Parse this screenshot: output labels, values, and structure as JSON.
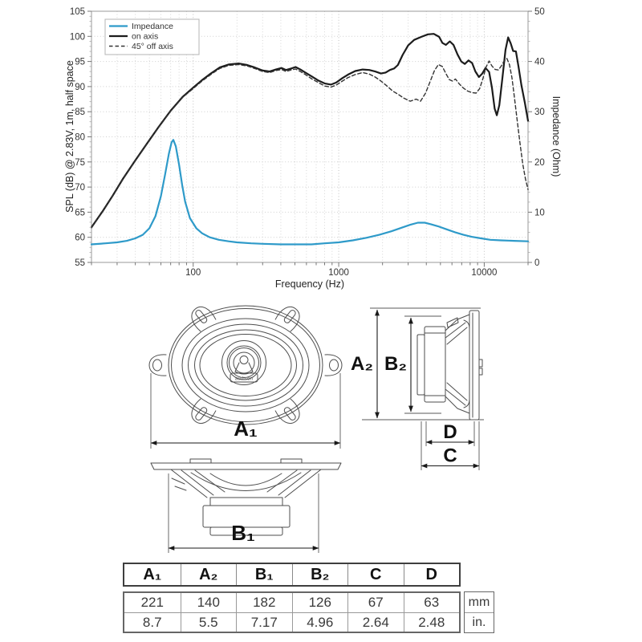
{
  "chart": {
    "x_axis": {
      "label": "Frequency (Hz)",
      "min": 20,
      "max": 20000,
      "tick_labels": [
        "100",
        "1000",
        "10000"
      ]
    },
    "y_left": {
      "label": "SPL (dB) @ 2.83V, 1m, half space",
      "min": 55,
      "max": 105,
      "step": 5
    },
    "y_right": {
      "label": "Impedance (Ohm)",
      "min": 0,
      "max": 50,
      "step": 10,
      "minor_step": 2
    },
    "legend": [
      {
        "label": "Impedance",
        "color": "#2E9AC9",
        "dash": ""
      },
      {
        "label": "on axis",
        "color": "#1c1c1c",
        "dash": ""
      },
      {
        "label": "45° off axis",
        "color": "#333333",
        "dash": "4.5 3"
      }
    ],
    "grid": true
  },
  "chart_data": {
    "type": "line",
    "x_scale": "log",
    "xlabel": "Frequency (Hz)",
    "xlim": [
      20,
      20000
    ],
    "ylim_left": [
      55,
      105
    ],
    "ylim_right": [
      0,
      50
    ],
    "legend_position": "top-left",
    "series": [
      {
        "name": "on axis",
        "axis": "left",
        "unit": "dB",
        "color": "#1c1c1c",
        "width": 2.2,
        "dash": "",
        "points": [
          [
            20,
            62
          ],
          [
            24,
            65.3
          ],
          [
            28,
            68.3
          ],
          [
            33,
            71.7
          ],
          [
            40,
            75.3
          ],
          [
            48,
            78.6
          ],
          [
            58,
            82
          ],
          [
            70,
            85.2
          ],
          [
            85,
            88
          ],
          [
            100,
            89.8
          ],
          [
            115,
            91.3
          ],
          [
            132,
            92.6
          ],
          [
            152,
            93.8
          ],
          [
            175,
            94.4
          ],
          [
            205,
            94.6
          ],
          [
            235,
            94.3
          ],
          [
            265,
            93.8
          ],
          [
            300,
            93.2
          ],
          [
            335,
            93.0
          ],
          [
            370,
            93.4
          ],
          [
            405,
            93.7
          ],
          [
            435,
            93.3
          ],
          [
            470,
            93.6
          ],
          [
            505,
            93.9
          ],
          [
            545,
            93.4
          ],
          [
            590,
            92.8
          ],
          [
            655,
            92.0
          ],
          [
            725,
            91.2
          ],
          [
            805,
            90.6
          ],
          [
            885,
            90.4
          ],
          [
            960,
            90.8
          ],
          [
            1060,
            91.7
          ],
          [
            1160,
            92.4
          ],
          [
            1300,
            93.1
          ],
          [
            1460,
            93.4
          ],
          [
            1620,
            93.3
          ],
          [
            1780,
            93.0
          ],
          [
            1950,
            92.6
          ],
          [
            2100,
            92.8
          ],
          [
            2250,
            93.3
          ],
          [
            2400,
            93.6
          ],
          [
            2550,
            94.3
          ],
          [
            2750,
            96.3
          ],
          [
            3000,
            98.2
          ],
          [
            3300,
            99.3
          ],
          [
            3700,
            99.9
          ],
          [
            4100,
            100.4
          ],
          [
            4500,
            100.5
          ],
          [
            4900,
            99.9
          ],
          [
            5150,
            98.7
          ],
          [
            5450,
            98.3
          ],
          [
            5800,
            99.0
          ],
          [
            6150,
            98.3
          ],
          [
            6550,
            96.4
          ],
          [
            6950,
            95.0
          ],
          [
            7350,
            94.5
          ],
          [
            7800,
            95.2
          ],
          [
            8250,
            94.7
          ],
          [
            8700,
            93.0
          ],
          [
            9200,
            91.9
          ],
          [
            9700,
            92.6
          ],
          [
            10200,
            93.7
          ],
          [
            10800,
            92.9
          ],
          [
            11300,
            89.8
          ],
          [
            11800,
            85.6
          ],
          [
            12200,
            84.3
          ],
          [
            12700,
            86.3
          ],
          [
            13300,
            91.5
          ],
          [
            14000,
            97.3
          ],
          [
            14600,
            99.8
          ],
          [
            15200,
            98.6
          ],
          [
            15800,
            97.1
          ],
          [
            16500,
            97.0
          ],
          [
            17200,
            94.0
          ],
          [
            18000,
            90.3
          ],
          [
            19000,
            86.8
          ],
          [
            20000,
            83.2
          ]
        ]
      },
      {
        "name": "45° off axis",
        "axis": "left",
        "unit": "dB",
        "color": "#333333",
        "width": 1.4,
        "dash": "4.5 3",
        "points": [
          [
            20,
            61.9
          ],
          [
            24,
            65.2
          ],
          [
            28,
            68.2
          ],
          [
            33,
            71.6
          ],
          [
            40,
            75.2
          ],
          [
            48,
            78.5
          ],
          [
            58,
            81.9
          ],
          [
            70,
            85.1
          ],
          [
            85,
            87.9
          ],
          [
            100,
            89.6
          ],
          [
            115,
            91.1
          ],
          [
            132,
            92.4
          ],
          [
            152,
            93.6
          ],
          [
            175,
            94.2
          ],
          [
            205,
            94.4
          ],
          [
            235,
            94.1
          ],
          [
            265,
            93.6
          ],
          [
            300,
            93.0
          ],
          [
            335,
            92.8
          ],
          [
            370,
            93.2
          ],
          [
            405,
            93.4
          ],
          [
            435,
            93.0
          ],
          [
            470,
            93.3
          ],
          [
            505,
            93.5
          ],
          [
            545,
            93.0
          ],
          [
            590,
            92.4
          ],
          [
            655,
            91.5
          ],
          [
            725,
            90.8
          ],
          [
            805,
            90.1
          ],
          [
            885,
            89.9
          ],
          [
            960,
            90.3
          ],
          [
            1060,
            91.1
          ],
          [
            1160,
            91.8
          ],
          [
            1300,
            92.4
          ],
          [
            1460,
            92.8
          ],
          [
            1620,
            92.5
          ],
          [
            1780,
            91.9
          ],
          [
            1950,
            91.1
          ],
          [
            2150,
            90.1
          ],
          [
            2350,
            89.1
          ],
          [
            2550,
            88.5
          ],
          [
            2800,
            87.7
          ],
          [
            3100,
            87.1
          ],
          [
            3400,
            87.5
          ],
          [
            3650,
            87.1
          ],
          [
            3950,
            88.7
          ],
          [
            4250,
            91.0
          ],
          [
            4550,
            93.2
          ],
          [
            4850,
            94.4
          ],
          [
            5150,
            94.0
          ],
          [
            5450,
            92.6
          ],
          [
            5750,
            91.4
          ],
          [
            6050,
            91.1
          ],
          [
            6350,
            91.5
          ],
          [
            6750,
            90.5
          ],
          [
            7200,
            89.7
          ],
          [
            7700,
            89.1
          ],
          [
            8250,
            88.8
          ],
          [
            8800,
            88.7
          ],
          [
            9300,
            89.6
          ],
          [
            9800,
            91.6
          ],
          [
            10300,
            93.9
          ],
          [
            10800,
            95.1
          ],
          [
            11300,
            94.1
          ],
          [
            11900,
            93.4
          ],
          [
            12500,
            93.3
          ],
          [
            13100,
            94.1
          ],
          [
            13700,
            95.1
          ],
          [
            14300,
            95.6
          ],
          [
            14900,
            94.4
          ],
          [
            15500,
            91.8
          ],
          [
            16100,
            88.0
          ],
          [
            16800,
            83.5
          ],
          [
            17600,
            78.8
          ],
          [
            18400,
            74.6
          ],
          [
            19200,
            71.6
          ],
          [
            20000,
            69.5
          ]
        ]
      },
      {
        "name": "Impedance",
        "axis": "right",
        "unit": "Ohm",
        "color": "#2E9AC9",
        "width": 2.2,
        "dash": "",
        "points": [
          [
            20,
            3.6
          ],
          [
            25,
            3.8
          ],
          [
            30,
            4.0
          ],
          [
            35,
            4.3
          ],
          [
            40,
            4.8
          ],
          [
            45,
            5.5
          ],
          [
            50,
            6.8
          ],
          [
            55,
            9.2
          ],
          [
            60,
            13.2
          ],
          [
            64,
            17.4
          ],
          [
            68,
            21.6
          ],
          [
            71,
            23.9
          ],
          [
            73,
            24.4
          ],
          [
            76,
            23.1
          ],
          [
            80,
            19.4
          ],
          [
            84,
            15.4
          ],
          [
            88,
            12.1
          ],
          [
            95,
            8.8
          ],
          [
            105,
            6.8
          ],
          [
            115,
            5.8
          ],
          [
            130,
            5.0
          ],
          [
            150,
            4.5
          ],
          [
            175,
            4.2
          ],
          [
            200,
            4.0
          ],
          [
            250,
            3.8
          ],
          [
            300,
            3.7
          ],
          [
            400,
            3.6
          ],
          [
            500,
            3.6
          ],
          [
            650,
            3.6
          ],
          [
            800,
            3.8
          ],
          [
            1000,
            4.0
          ],
          [
            1250,
            4.4
          ],
          [
            1550,
            4.9
          ],
          [
            1900,
            5.5
          ],
          [
            2300,
            6.2
          ],
          [
            2700,
            6.9
          ],
          [
            3100,
            7.5
          ],
          [
            3500,
            7.9
          ],
          [
            3900,
            7.9
          ],
          [
            4300,
            7.6
          ],
          [
            4800,
            7.2
          ],
          [
            5500,
            6.6
          ],
          [
            6300,
            6.0
          ],
          [
            7200,
            5.5
          ],
          [
            8200,
            5.1
          ],
          [
            9500,
            4.8
          ],
          [
            11000,
            4.5
          ],
          [
            13000,
            4.4
          ],
          [
            16000,
            4.3
          ],
          [
            20000,
            4.2
          ]
        ]
      }
    ]
  },
  "diagram": {
    "front": {
      "dim": "A₁",
      "logo": "audison"
    },
    "side": {
      "dim_outer": "A₂",
      "dim_cutout": "B₂",
      "dim_d": "D",
      "dim_c": "C"
    },
    "bottom": {
      "dim": "B₁"
    }
  },
  "table": {
    "headers": [
      "A₁",
      "A₂",
      "B₁",
      "B₂",
      "C",
      "D"
    ],
    "mm": [
      "221",
      "140",
      "182",
      "126",
      "67",
      "63"
    ],
    "in": [
      "8.7",
      "5.5",
      "7.17",
      "4.96",
      "2.64",
      "2.48"
    ],
    "units": [
      "mm",
      "in."
    ]
  }
}
